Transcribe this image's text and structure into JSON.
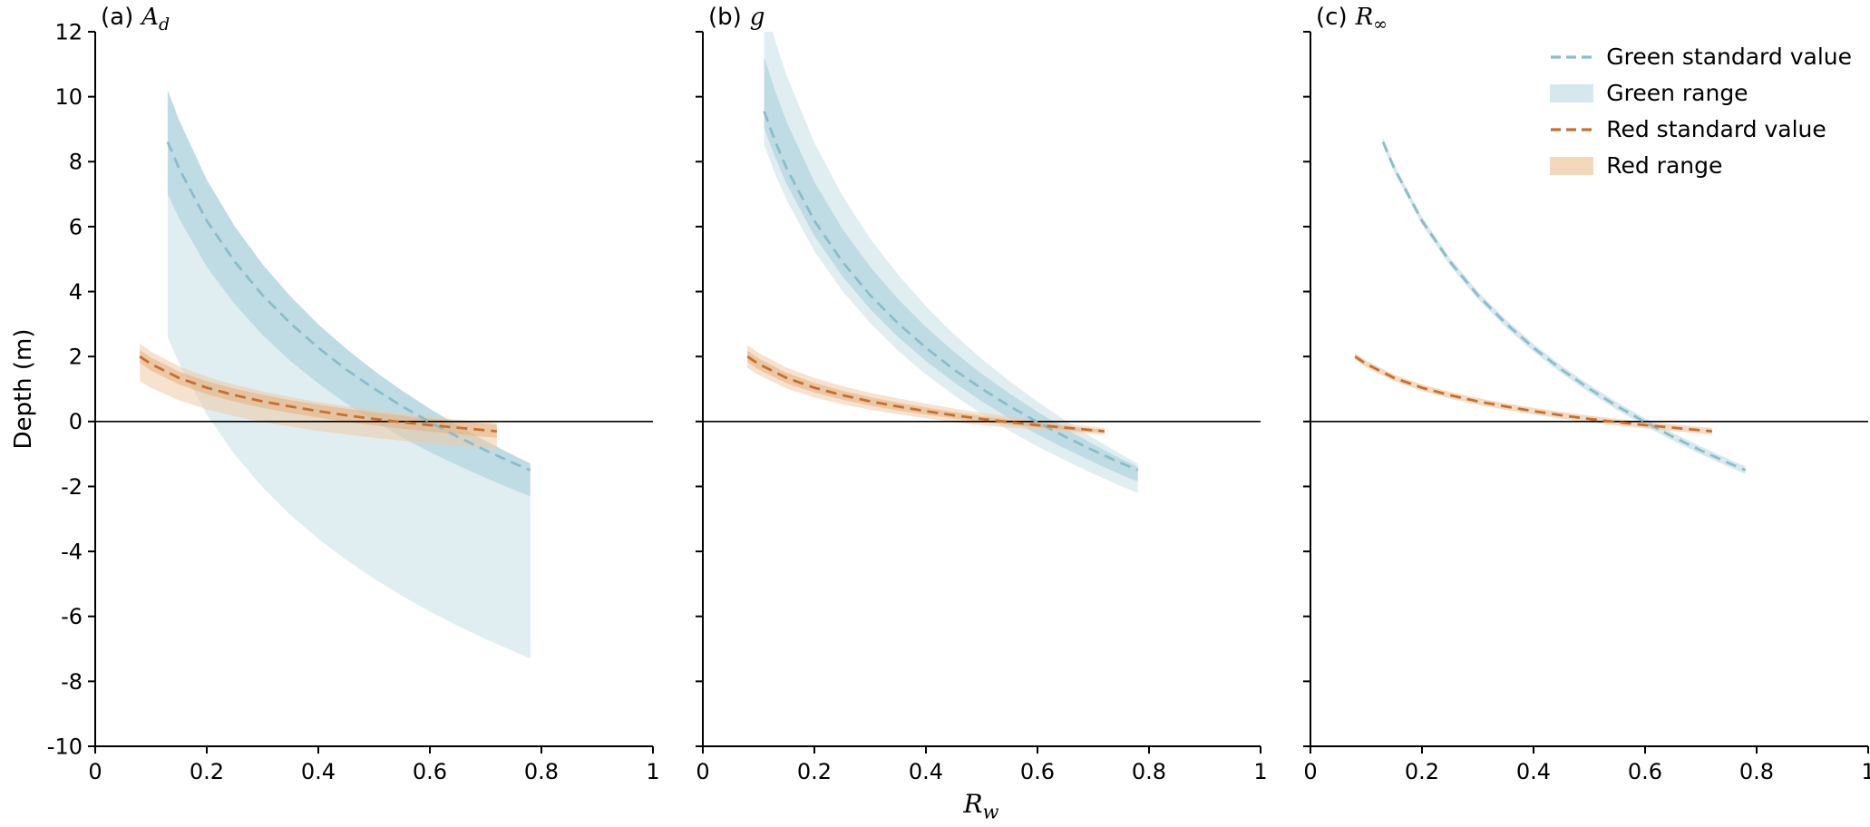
{
  "colors": {
    "green_line": "#89bdcb",
    "green_fill_outer": "#c6e0e7",
    "green_fill_inner": "#a4ced9",
    "red_line": "#c96e2a",
    "red_fill_outer": "#efcba6",
    "red_fill_inner": "#e2ab79",
    "axis": "#000000",
    "background": "#ffffff"
  },
  "legend": {
    "items": [
      {
        "label": "Green standard value",
        "swatch": "dashed-line",
        "color": "green_line"
      },
      {
        "label": "Green range",
        "swatch": "patch",
        "color": "green_fill_outer"
      },
      {
        "label": "Red standard value",
        "swatch": "dashed-line",
        "color": "red_line"
      },
      {
        "label": "Red range",
        "swatch": "patch",
        "color": "red_fill_outer"
      }
    ]
  },
  "chart_data": {
    "type": "line",
    "xlabel": {
      "symbol": "R",
      "subscript": "w"
    },
    "ylabel": "Depth (m)",
    "xlim": [
      0,
      1
    ],
    "ylim": [
      -10,
      12
    ],
    "xticks": [
      0,
      0.2,
      0.4,
      0.6,
      0.8,
      1
    ],
    "xtick_labels": [
      "0",
      "0.2",
      "0.4",
      "0.6",
      "0.8",
      "1"
    ],
    "yticks": [
      -10,
      -8,
      -6,
      -4,
      -2,
      0,
      2,
      4,
      6,
      8,
      10,
      12
    ],
    "ytick_labels": [
      "-10",
      "-8",
      "-6",
      "-4",
      "-2",
      "0",
      "2",
      "4",
      "6",
      "8",
      "10",
      "12"
    ],
    "zero_line_y": 0,
    "grid": false,
    "legend_position": "upper-right-panel-c",
    "panels": [
      {
        "id": "a",
        "title_prefix": "(a)",
        "title_symbol": "A",
        "title_subscript": "d",
        "series": [
          {
            "name": "green-range-outer",
            "kind": "band",
            "color": "green_fill_outer",
            "opacity": 0.55,
            "x": [
              0.13,
              0.15,
              0.2,
              0.25,
              0.3,
              0.35,
              0.4,
              0.45,
              0.5,
              0.55,
              0.6,
              0.65,
              0.7,
              0.75,
              0.78
            ],
            "upper": [
              10.21,
              9.29,
              7.44,
              6.01,
              4.84,
              3.85,
              2.99,
              2.24,
              1.56,
              0.95,
              0.39,
              -0.12,
              -0.6,
              -1.04,
              -1.29
            ],
            "lower": [
              2.59,
              1.8,
              0.21,
              -1.02,
              -2.02,
              -2.88,
              -3.61,
              -4.26,
              -4.84,
              -5.37,
              -5.85,
              -6.29,
              -6.7,
              -7.08,
              -7.3
            ]
          },
          {
            "name": "green-range-inner",
            "kind": "band",
            "color": "green_fill_inner",
            "opacity": 0.55,
            "x": [
              0.13,
              0.15,
              0.2,
              0.25,
              0.3,
              0.35,
              0.4,
              0.45,
              0.5,
              0.55,
              0.6,
              0.65,
              0.7,
              0.75,
              0.78
            ],
            "upper": [
              10.21,
              9.29,
              7.44,
              6.01,
              4.84,
              3.85,
              2.99,
              2.24,
              1.56,
              0.95,
              0.39,
              -0.12,
              -0.6,
              -1.04,
              -1.29
            ],
            "lower": [
              7.0,
              6.26,
              4.76,
              3.61,
              2.66,
              1.86,
              1.17,
              0.55,
              0.01,
              -0.49,
              -0.94,
              -1.35,
              -1.74,
              -2.1,
              -2.3
            ]
          },
          {
            "name": "red-range-outer",
            "kind": "band",
            "color": "red_fill_outer",
            "opacity": 0.55,
            "x": [
              0.08,
              0.1,
              0.15,
              0.2,
              0.25,
              0.3,
              0.35,
              0.4,
              0.45,
              0.5,
              0.55,
              0.6,
              0.65,
              0.7,
              0.72
            ],
            "upper": [
              2.4,
              2.15,
              1.7,
              1.38,
              1.13,
              0.93,
              0.75,
              0.6,
              0.47,
              0.36,
              0.25,
              0.15,
              0.06,
              -0.02,
              -0.05
            ],
            "lower": [
              1.25,
              1.04,
              0.65,
              0.38,
              0.16,
              -0.01,
              -0.16,
              -0.29,
              -0.4,
              -0.5,
              -0.59,
              -0.68,
              -0.75,
              -0.82,
              -0.85
            ]
          },
          {
            "name": "red-range-inner",
            "kind": "band",
            "color": "red_fill_inner",
            "opacity": 0.5,
            "x": [
              0.08,
              0.1,
              0.15,
              0.2,
              0.25,
              0.3,
              0.35,
              0.4,
              0.45,
              0.5,
              0.55,
              0.6,
              0.65,
              0.7,
              0.72
            ],
            "upper": [
              2.2,
              1.97,
              1.54,
              1.24,
              1.01,
              0.82,
              0.66,
              0.52,
              0.39,
              0.28,
              0.18,
              0.09,
              0.01,
              -0.07,
              -0.1
            ],
            "lower": [
              1.8,
              1.57,
              1.14,
              0.84,
              0.61,
              0.42,
              0.26,
              0.12,
              -0.01,
              -0.12,
              -0.22,
              -0.31,
              -0.39,
              -0.47,
              -0.5
            ]
          },
          {
            "name": "green-standard",
            "kind": "line",
            "color": "green_line",
            "x": [
              0.13,
              0.15,
              0.2,
              0.25,
              0.3,
              0.35,
              0.4,
              0.45,
              0.5,
              0.55,
              0.6,
              0.65,
              0.7,
              0.75,
              0.78
            ],
            "y": [
              8.61,
              7.8,
              6.18,
              4.92,
              3.89,
              3.02,
              2.27,
              1.6,
              1.01,
              0.47,
              -0.02,
              -0.47,
              -0.89,
              -1.28,
              -1.5
            ]
          },
          {
            "name": "red-standard",
            "kind": "line",
            "color": "red_line",
            "x": [
              0.08,
              0.1,
              0.15,
              0.2,
              0.25,
              0.3,
              0.35,
              0.4,
              0.45,
              0.5,
              0.55,
              0.6,
              0.65,
              0.7,
              0.72
            ],
            "y": [
              2.0,
              1.77,
              1.34,
              1.04,
              0.81,
              0.62,
              0.46,
              0.32,
              0.19,
              0.08,
              -0.02,
              -0.11,
              -0.19,
              -0.27,
              -0.3
            ]
          }
        ]
      },
      {
        "id": "b",
        "title_prefix": "(b)",
        "title_symbol": "g",
        "title_subscript": "",
        "series": [
          {
            "name": "green-range-outer",
            "kind": "band",
            "color": "green_fill_outer",
            "opacity": 0.55,
            "x": [
              0.11,
              0.13,
              0.15,
              0.2,
              0.25,
              0.3,
              0.35,
              0.4,
              0.45,
              0.5,
              0.55,
              0.6,
              0.65,
              0.7,
              0.75,
              0.78
            ],
            "upper": [
              12.91,
              11.7,
              10.66,
              8.58,
              6.96,
              5.63,
              4.52,
              3.55,
              2.69,
              1.93,
              1.24,
              0.61,
              0.03,
              -0.51,
              -1.01,
              -1.3
            ],
            "lower": [
              8.51,
              7.6,
              6.82,
              5.24,
              4.02,
              3.03,
              2.18,
              1.45,
              0.81,
              0.23,
              -0.29,
              -0.77,
              -1.2,
              -1.61,
              -1.99,
              -2.2
            ]
          },
          {
            "name": "green-range-inner",
            "kind": "band",
            "color": "green_fill_inner",
            "opacity": 0.55,
            "x": [
              0.11,
              0.13,
              0.15,
              0.2,
              0.25,
              0.3,
              0.35,
              0.4,
              0.45,
              0.5,
              0.55,
              0.6,
              0.65,
              0.7,
              0.75,
              0.78
            ],
            "upper": [
              11.23,
              10.16,
              9.23,
              7.38,
              5.94,
              4.76,
              3.77,
              2.91,
              2.15,
              1.47,
              0.86,
              0.3,
              -0.22,
              -0.7,
              -1.15,
              -1.4
            ],
            "lower": [
              9.03,
              8.11,
              7.31,
              5.71,
              4.47,
              3.46,
              2.6,
              1.86,
              1.21,
              0.62,
              0.09,
              -0.4,
              -0.84,
              -1.25,
              -1.64,
              -1.85
            ]
          },
          {
            "name": "red-range-outer",
            "kind": "band",
            "color": "red_fill_outer",
            "opacity": 0.55,
            "x": [
              0.08,
              0.1,
              0.15,
              0.2,
              0.25,
              0.3,
              0.35,
              0.4,
              0.45,
              0.5,
              0.55,
              0.6,
              0.65,
              0.7,
              0.72
            ],
            "upper": [
              2.35,
              2.11,
              1.66,
              1.34,
              1.09,
              0.88,
              0.71,
              0.55,
              0.4,
              0.27,
              0.15,
              0.04,
              -0.06,
              -0.16,
              -0.2
            ],
            "lower": [
              1.65,
              1.43,
              1.02,
              0.74,
              0.53,
              0.36,
              0.22,
              0.1,
              -0.02,
              -0.11,
              -0.19,
              -0.26,
              -0.32,
              -0.38,
              -0.4
            ]
          },
          {
            "name": "red-range-inner",
            "kind": "band",
            "color": "red_fill_inner",
            "opacity": 0.5,
            "x": [
              0.08,
              0.1,
              0.15,
              0.2,
              0.25,
              0.3,
              0.35,
              0.4,
              0.45,
              0.5,
              0.55,
              0.6,
              0.65,
              0.7,
              0.72
            ],
            "upper": [
              2.18,
              1.94,
              1.5,
              1.19,
              0.95,
              0.75,
              0.58,
              0.43,
              0.29,
              0.17,
              0.06,
              -0.04,
              -0.13,
              -0.22,
              -0.25
            ],
            "lower": [
              1.83,
              1.6,
              1.18,
              0.89,
              0.67,
              0.49,
              0.34,
              0.21,
              0.09,
              -0.01,
              -0.1,
              -0.18,
              -0.26,
              -0.33,
              -0.35
            ]
          },
          {
            "name": "green-standard",
            "kind": "line",
            "color": "green_line",
            "x": [
              0.11,
              0.13,
              0.15,
              0.2,
              0.25,
              0.3,
              0.35,
              0.4,
              0.45,
              0.5,
              0.55,
              0.6,
              0.65,
              0.7,
              0.75,
              0.78
            ],
            "y": [
              9.55,
              8.61,
              7.8,
              6.18,
              4.92,
              3.89,
              3.02,
              2.27,
              1.6,
              1.01,
              0.47,
              -0.02,
              -0.47,
              -0.89,
              -1.28,
              -1.5
            ]
          },
          {
            "name": "red-standard",
            "kind": "line",
            "color": "red_line",
            "x": [
              0.08,
              0.1,
              0.15,
              0.2,
              0.25,
              0.3,
              0.35,
              0.4,
              0.45,
              0.5,
              0.55,
              0.6,
              0.65,
              0.7,
              0.72
            ],
            "y": [
              2.0,
              1.77,
              1.34,
              1.04,
              0.81,
              0.62,
              0.46,
              0.32,
              0.19,
              0.08,
              -0.02,
              -0.11,
              -0.19,
              -0.27,
              -0.3
            ]
          }
        ]
      },
      {
        "id": "c",
        "title_prefix": "(c)",
        "title_symbol": "R",
        "title_subscript": "∞",
        "series": [
          {
            "name": "green-range-thin",
            "kind": "band",
            "color": "green_fill_outer",
            "opacity": 0.7,
            "x": [
              0.13,
              0.15,
              0.2,
              0.25,
              0.3,
              0.35,
              0.4,
              0.45,
              0.5,
              0.55,
              0.6,
              0.65,
              0.7,
              0.75,
              0.78
            ],
            "upper": [
              8.73,
              7.92,
              6.3,
              5.04,
              4.01,
              3.14,
              2.39,
              1.72,
              1.13,
              0.59,
              0.1,
              -0.35,
              -0.77,
              -1.16,
              -1.38
            ],
            "lower": [
              8.49,
              7.68,
              6.06,
              4.8,
              3.77,
              2.9,
              2.15,
              1.48,
              0.89,
              0.35,
              -0.14,
              -0.59,
              -1.01,
              -1.4,
              -1.62
            ]
          },
          {
            "name": "red-range-thin",
            "kind": "band",
            "color": "red_fill_outer",
            "opacity": 0.7,
            "x": [
              0.08,
              0.1,
              0.15,
              0.2,
              0.25,
              0.3,
              0.35,
              0.4,
              0.45,
              0.5,
              0.55,
              0.6,
              0.65,
              0.7,
              0.72
            ],
            "upper": [
              2.1,
              1.87,
              1.44,
              1.14,
              0.91,
              0.72,
              0.56,
              0.42,
              0.29,
              0.18,
              0.08,
              -0.01,
              -0.09,
              -0.17,
              -0.2
            ],
            "lower": [
              1.9,
              1.67,
              1.24,
              0.94,
              0.71,
              0.52,
              0.36,
              0.22,
              0.09,
              -0.02,
              -0.12,
              -0.21,
              -0.29,
              -0.37,
              -0.4
            ]
          },
          {
            "name": "green-standard",
            "kind": "line",
            "color": "green_line",
            "x": [
              0.13,
              0.15,
              0.2,
              0.25,
              0.3,
              0.35,
              0.4,
              0.45,
              0.5,
              0.55,
              0.6,
              0.65,
              0.7,
              0.75,
              0.78
            ],
            "y": [
              8.61,
              7.8,
              6.18,
              4.92,
              3.89,
              3.02,
              2.27,
              1.6,
              1.01,
              0.47,
              -0.02,
              -0.47,
              -0.89,
              -1.28,
              -1.5
            ]
          },
          {
            "name": "red-standard",
            "kind": "line",
            "color": "red_line",
            "x": [
              0.08,
              0.1,
              0.15,
              0.2,
              0.25,
              0.3,
              0.35,
              0.4,
              0.45,
              0.5,
              0.55,
              0.6,
              0.65,
              0.7,
              0.72
            ],
            "y": [
              2.0,
              1.77,
              1.34,
              1.04,
              0.81,
              0.62,
              0.46,
              0.32,
              0.19,
              0.08,
              -0.02,
              -0.11,
              -0.19,
              -0.27,
              -0.3
            ]
          }
        ]
      }
    ]
  }
}
